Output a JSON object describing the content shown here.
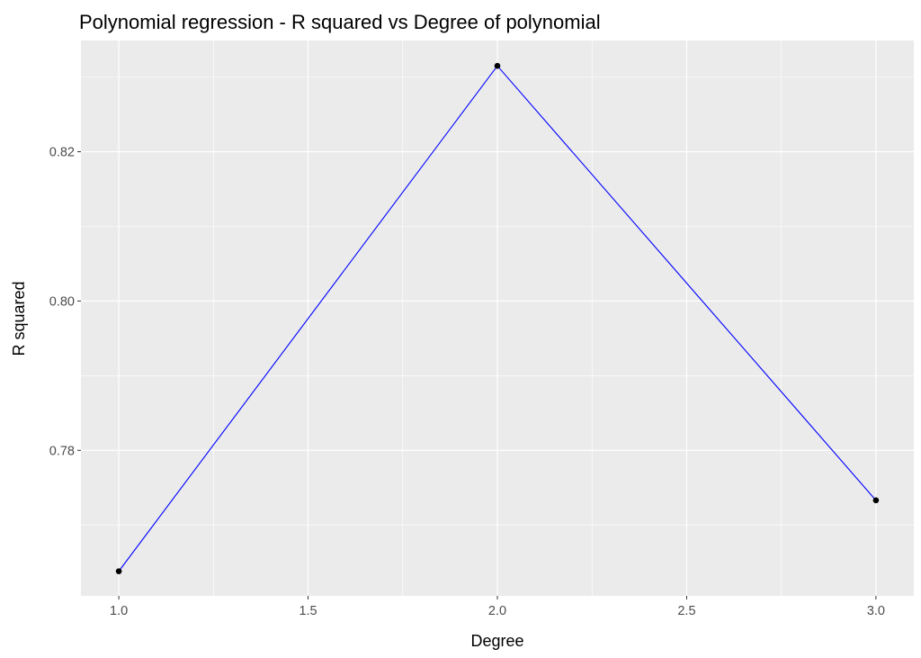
{
  "chart_data": {
    "type": "line",
    "title": "Polynomial regression - R squared vs Degree of polynomial",
    "xlabel": "Degree",
    "ylabel": "R squared",
    "x": [
      1,
      2,
      3
    ],
    "y": [
      0.7638,
      0.8315,
      0.7733
    ],
    "xlim": [
      0.9,
      3.1
    ],
    "ylim": [
      0.7605,
      0.8349
    ],
    "xticks": [
      1.0,
      1.5,
      2.0,
      2.5,
      3.0
    ],
    "xtick_labels": [
      "1.0",
      "1.5",
      "2.0",
      "2.5",
      "3.0"
    ],
    "yticks": [
      0.78,
      0.8,
      0.82
    ],
    "ytick_labels": [
      "0.78",
      "0.80",
      "0.82"
    ],
    "x_minor": [
      1.25,
      1.75,
      2.25,
      2.75
    ],
    "y_minor": [
      0.77,
      0.79,
      0.81,
      0.83
    ],
    "grid": true,
    "line_color": "#0000ff",
    "point_color": "#000000",
    "panel_background": "#ebebeb",
    "grid_color": "#ffffff"
  }
}
